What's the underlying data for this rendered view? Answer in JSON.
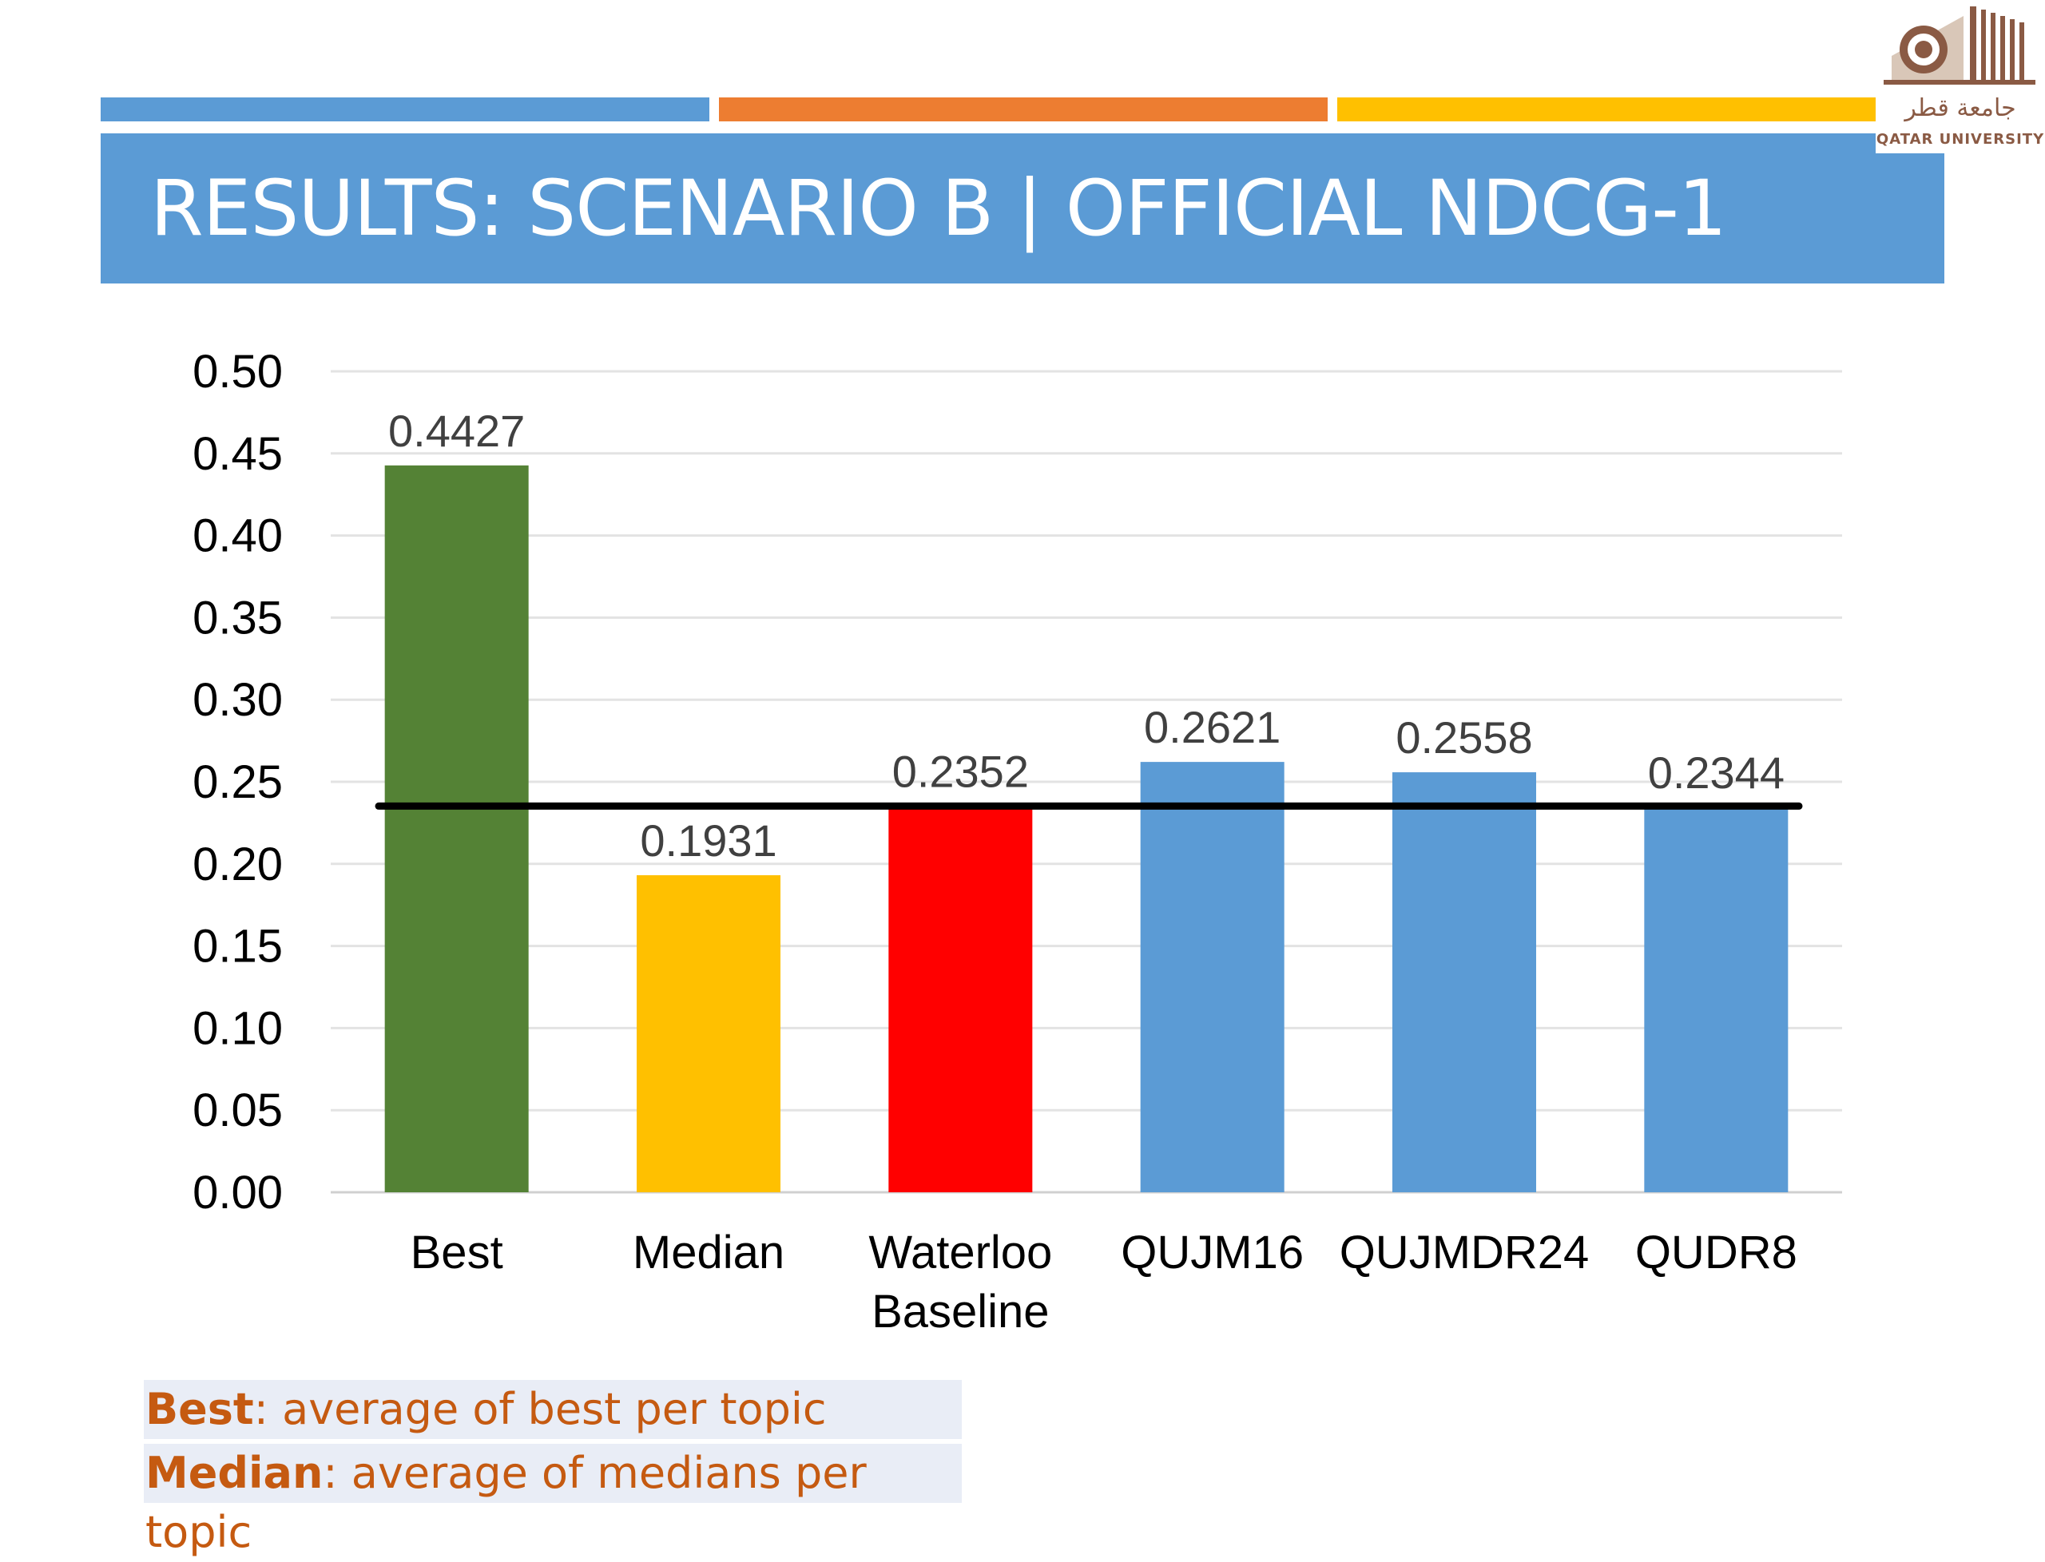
{
  "slide": {
    "title": "RESULTS: SCENARIO B | OFFICIAL NDCG-1",
    "accent_colors": [
      "#5b9bd5",
      "#ed7d31",
      "#ffc000"
    ]
  },
  "logo": {
    "arabic": "جامعة قطر",
    "english": "QATAR UNIVERSITY"
  },
  "chart_data": {
    "type": "bar",
    "title": "",
    "xlabel": "",
    "ylabel": "",
    "ylim": [
      0,
      0.5
    ],
    "yticks": [
      "0.00",
      "0.05",
      "0.10",
      "0.15",
      "0.20",
      "0.25",
      "0.30",
      "0.35",
      "0.40",
      "0.45",
      "0.50"
    ],
    "grid": true,
    "categories": [
      [
        "Best"
      ],
      [
        "Median"
      ],
      [
        "Waterloo",
        "Baseline"
      ],
      [
        "QUJM16"
      ],
      [
        "QUJMDR24"
      ],
      [
        "QUDR8"
      ]
    ],
    "values": [
      0.4427,
      0.1931,
      0.2352,
      0.2621,
      0.2558,
      0.2344
    ],
    "value_labels": [
      "0.4427",
      "0.1931",
      "0.2352",
      "0.2621",
      "0.2558",
      "0.2344"
    ],
    "colors": [
      "#548235",
      "#ffc000",
      "#ff0000",
      "#5b9bd5",
      "#5b9bd5",
      "#5b9bd5"
    ],
    "reference_line": 0.2352
  },
  "notes": [
    {
      "term": "Best",
      "text": ": average of best per topic"
    },
    {
      "term": "Median",
      "text": ": average of medians per topic"
    }
  ]
}
